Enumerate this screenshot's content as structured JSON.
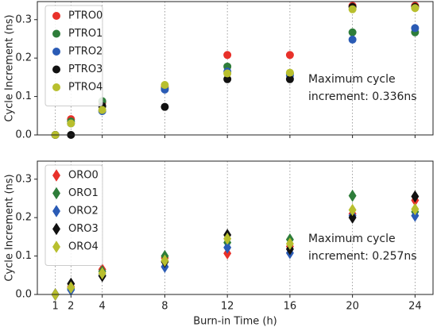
{
  "chart_data": [
    {
      "type": "scatter",
      "marker": "circle",
      "ylabel": "Cycle Increment (ns)",
      "x": [
        1,
        2,
        4,
        8,
        12,
        16,
        20,
        24
      ],
      "series": [
        {
          "name": "PTRO0",
          "color": "#e8312a",
          "values": [
            0,
            0.041,
            0.085,
            0.125,
            0.208,
            0.208,
            0.336,
            0.336
          ]
        },
        {
          "name": "PTRO1",
          "color": "#2e7d3a",
          "values": [
            0,
            0.035,
            0.088,
            0.12,
            0.178,
            0.16,
            0.267,
            0.267
          ]
        },
        {
          "name": "PTRO2",
          "color": "#2a5bb5",
          "values": [
            0,
            0.03,
            0.062,
            0.118,
            0.165,
            0.155,
            0.248,
            0.278
          ]
        },
        {
          "name": "PTRO3",
          "color": "#111111",
          "values": [
            0,
            0,
            0.075,
            0.073,
            0.145,
            0.145,
            0.333,
            0.333
          ]
        },
        {
          "name": "PTRO4",
          "color": "#b8bf2e",
          "values": [
            0,
            0.03,
            0.065,
            0.13,
            0.16,
            0.162,
            0.327,
            0.33
          ]
        }
      ],
      "annotation": [
        "Maximum cycle",
        "increment: 0.336ns"
      ],
      "xlim": [
        -0.15,
        25.15
      ],
      "xticks": [
        1,
        2,
        4,
        8,
        12,
        16,
        20,
        24
      ],
      "ylim": [
        0,
        0.347
      ],
      "yticks": [
        {
          "value": 0,
          "label": "0.0"
        },
        0.1,
        0.2,
        0.3
      ],
      "grid": "x",
      "legend": "upper left"
    },
    {
      "type": "scatter",
      "marker": "diamond",
      "ylabel": "Cycle Increment (ns)",
      "xlabel": "Burn-in Time (h)",
      "x": [
        1,
        2,
        4,
        8,
        12,
        16,
        20,
        24
      ],
      "series": [
        {
          "name": "ORO0",
          "color": "#e8312a",
          "values": [
            0,
            0.02,
            0.065,
            0.095,
            0.107,
            0.125,
            0.21,
            0.245
          ]
        },
        {
          "name": "ORO1",
          "color": "#2e7d3a",
          "values": [
            0,
            0.015,
            0.06,
            0.1,
            0.135,
            0.143,
            0.257,
            0.215
          ]
        },
        {
          "name": "ORO2",
          "color": "#2a5bb5",
          "values": [
            0,
            0.012,
            0.05,
            0.072,
            0.122,
            0.108,
            0.205,
            0.205
          ]
        },
        {
          "name": "ORO3",
          "color": "#111111",
          "values": [
            0,
            0.028,
            0.048,
            0.085,
            0.155,
            0.118,
            0.2,
            0.255
          ]
        },
        {
          "name": "ORO4",
          "color": "#b8bf2e",
          "values": [
            0,
            0.018,
            0.055,
            0.088,
            0.145,
            0.132,
            0.22,
            0.222
          ]
        }
      ],
      "annotation": [
        "Maximum cycle",
        "increment: 0.257ns"
      ],
      "xlim": [
        -0.15,
        25.15
      ],
      "xticks": [
        1,
        2,
        4,
        8,
        12,
        16,
        20,
        24
      ],
      "ylim": [
        0,
        0.347
      ],
      "yticks": [
        {
          "value": 0,
          "label": "0.0"
        },
        0.1,
        0.2,
        0.3
      ],
      "grid": "x",
      "legend": "upper left"
    }
  ]
}
